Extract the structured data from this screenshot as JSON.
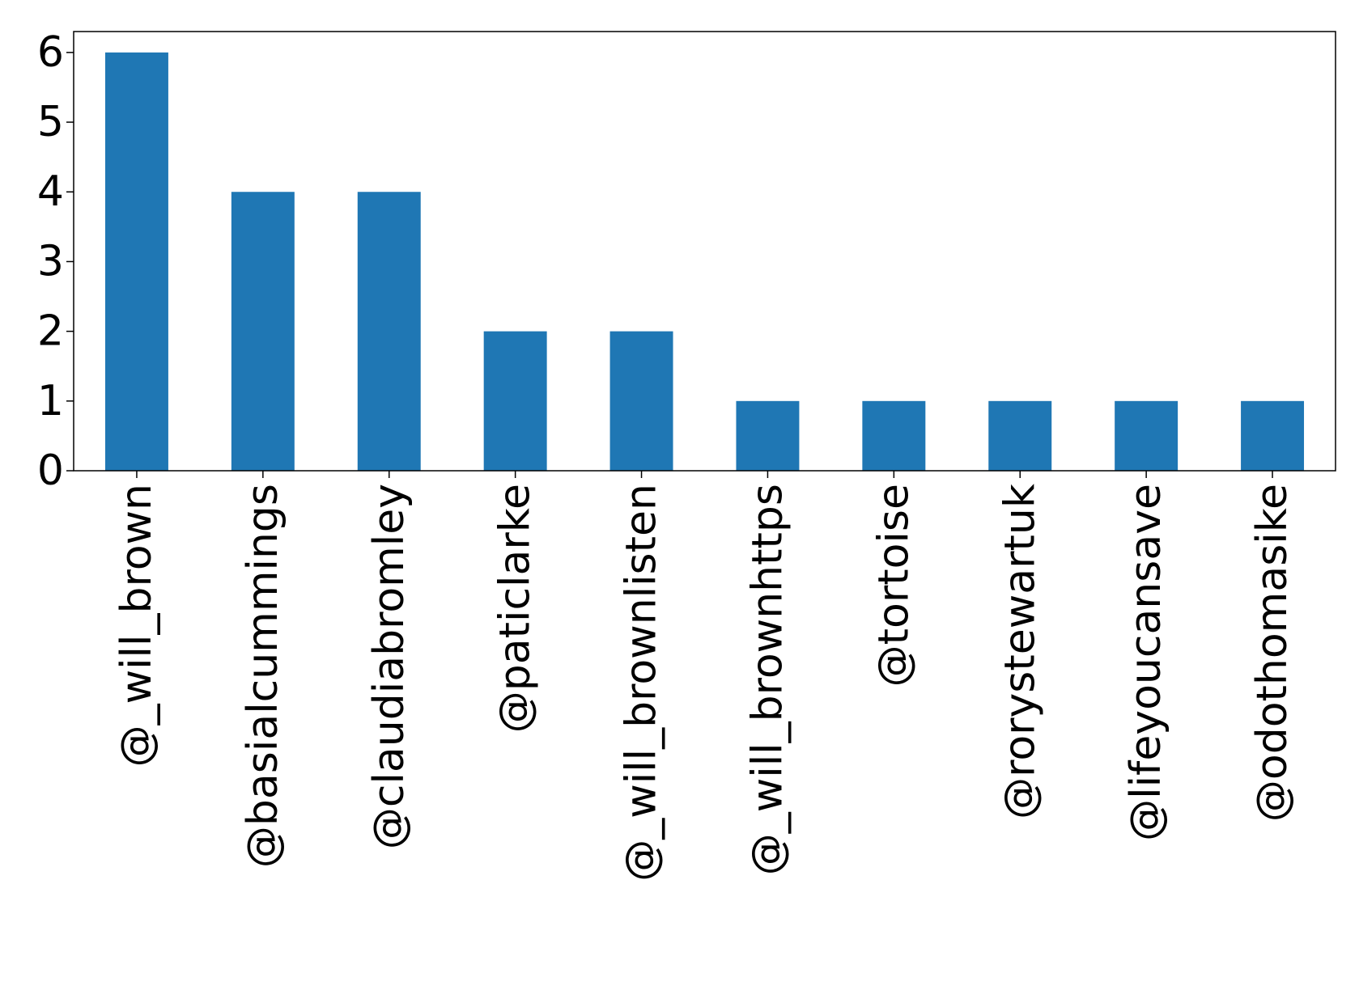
{
  "chart_data": {
    "type": "bar",
    "title": "",
    "xlabel": "",
    "ylabel": "",
    "categories": [
      "@_will_brown",
      "@basialcummings",
      "@claudiabromley",
      "@paticlarke",
      "@_will_brownlisten",
      "@_will_brownhttps",
      "@tortoise",
      "@rorystewartuk",
      "@lifeyoucansave",
      "@odothomasike"
    ],
    "values": [
      6,
      4,
      4,
      2,
      2,
      1,
      1,
      1,
      1,
      1
    ],
    "ylim": [
      0,
      6.3
    ],
    "yticks": [
      0,
      1,
      2,
      3,
      4,
      5,
      6
    ],
    "grid": false,
    "legend": false,
    "bar_color": "#1f77b4",
    "axis_color": "#000000"
  }
}
